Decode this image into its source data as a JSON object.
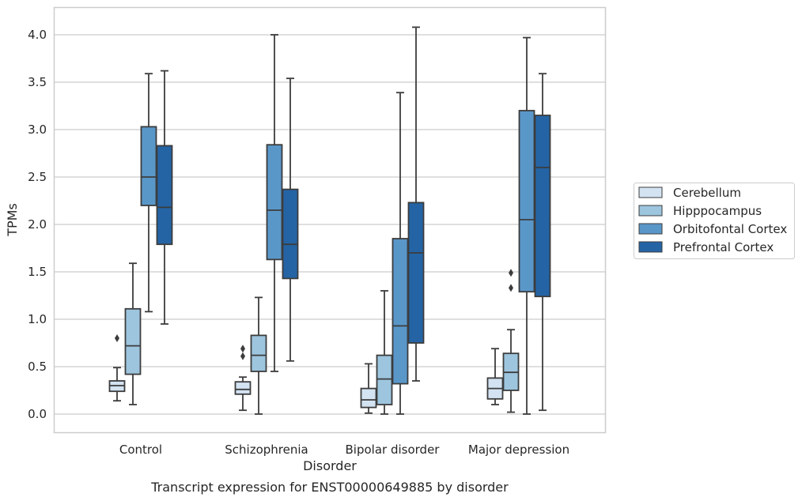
{
  "chart_data": {
    "type": "box",
    "caption": "Transcript expression for ENST00000649885 by disorder",
    "xlabel": "Disorder",
    "ylabel": "TPMs",
    "ylim": [
      -0.2,
      4.3
    ],
    "yticks": [
      0.0,
      0.5,
      1.0,
      1.5,
      2.0,
      2.5,
      3.0,
      3.5,
      4.0
    ],
    "ytick_labels": [
      "0.0",
      "0.5",
      "1.0",
      "1.5",
      "2.0",
      "2.5",
      "3.0",
      "3.5",
      "4.0"
    ],
    "grid": "horizontal",
    "legend_position": "right",
    "categories": [
      "Control",
      "Schizophrenia",
      "Bipolar disorder",
      "Major depression"
    ],
    "series": [
      {
        "name": "Cerebellum",
        "color": "#d3e3f2",
        "boxes": [
          {
            "whislo": 0.14,
            "q1": 0.24,
            "med": 0.3,
            "q3": 0.35,
            "whishi": 0.49,
            "fliers": [
              0.8
            ]
          },
          {
            "whislo": 0.04,
            "q1": 0.21,
            "med": 0.26,
            "q3": 0.34,
            "whishi": 0.39,
            "fliers": [
              0.61,
              0.69
            ]
          },
          {
            "whislo": 0.01,
            "q1": 0.07,
            "med": 0.15,
            "q3": 0.27,
            "whishi": 0.53,
            "fliers": []
          },
          {
            "whislo": 0.1,
            "q1": 0.16,
            "med": 0.27,
            "q3": 0.38,
            "whishi": 0.69,
            "fliers": []
          }
        ]
      },
      {
        "name": "Hipppocampus",
        "color": "#9dc5de",
        "boxes": [
          {
            "whislo": 0.1,
            "q1": 0.42,
            "med": 0.72,
            "q3": 1.11,
            "whishi": 1.59,
            "fliers": []
          },
          {
            "whislo": 0.0,
            "q1": 0.45,
            "med": 0.62,
            "q3": 0.83,
            "whishi": 1.23,
            "fliers": []
          },
          {
            "whislo": 0.0,
            "q1": 0.1,
            "med": 0.37,
            "q3": 0.62,
            "whishi": 1.3,
            "fliers": []
          },
          {
            "whislo": 0.02,
            "q1": 0.25,
            "med": 0.44,
            "q3": 0.64,
            "whishi": 0.89,
            "fliers": [
              1.33,
              1.49
            ]
          }
        ]
      },
      {
        "name": "Orbitofontal Cortex",
        "color": "#5a97c9",
        "boxes": [
          {
            "whislo": 1.08,
            "q1": 2.2,
            "med": 2.5,
            "q3": 3.03,
            "whishi": 3.59,
            "fliers": []
          },
          {
            "whislo": 0.45,
            "q1": 1.63,
            "med": 2.15,
            "q3": 2.84,
            "whishi": 4.0,
            "fliers": []
          },
          {
            "whislo": 0.0,
            "q1": 0.32,
            "med": 0.93,
            "q3": 1.85,
            "whishi": 3.39,
            "fliers": []
          },
          {
            "whislo": 0.0,
            "q1": 1.29,
            "med": 2.05,
            "q3": 3.2,
            "whishi": 3.97,
            "fliers": []
          }
        ]
      },
      {
        "name": "Prefrontal Cortex",
        "color": "#2464a5",
        "boxes": [
          {
            "whislo": 0.95,
            "q1": 1.79,
            "med": 2.18,
            "q3": 2.83,
            "whishi": 3.62,
            "fliers": []
          },
          {
            "whislo": 0.56,
            "q1": 1.43,
            "med": 1.79,
            "q3": 2.37,
            "whishi": 3.54,
            "fliers": []
          },
          {
            "whislo": 0.35,
            "q1": 0.75,
            "med": 1.7,
            "q3": 2.23,
            "whishi": 4.08,
            "fliers": []
          },
          {
            "whislo": 0.04,
            "q1": 1.24,
            "med": 2.6,
            "q3": 3.15,
            "whishi": 3.59,
            "fliers": []
          }
        ]
      }
    ]
  }
}
